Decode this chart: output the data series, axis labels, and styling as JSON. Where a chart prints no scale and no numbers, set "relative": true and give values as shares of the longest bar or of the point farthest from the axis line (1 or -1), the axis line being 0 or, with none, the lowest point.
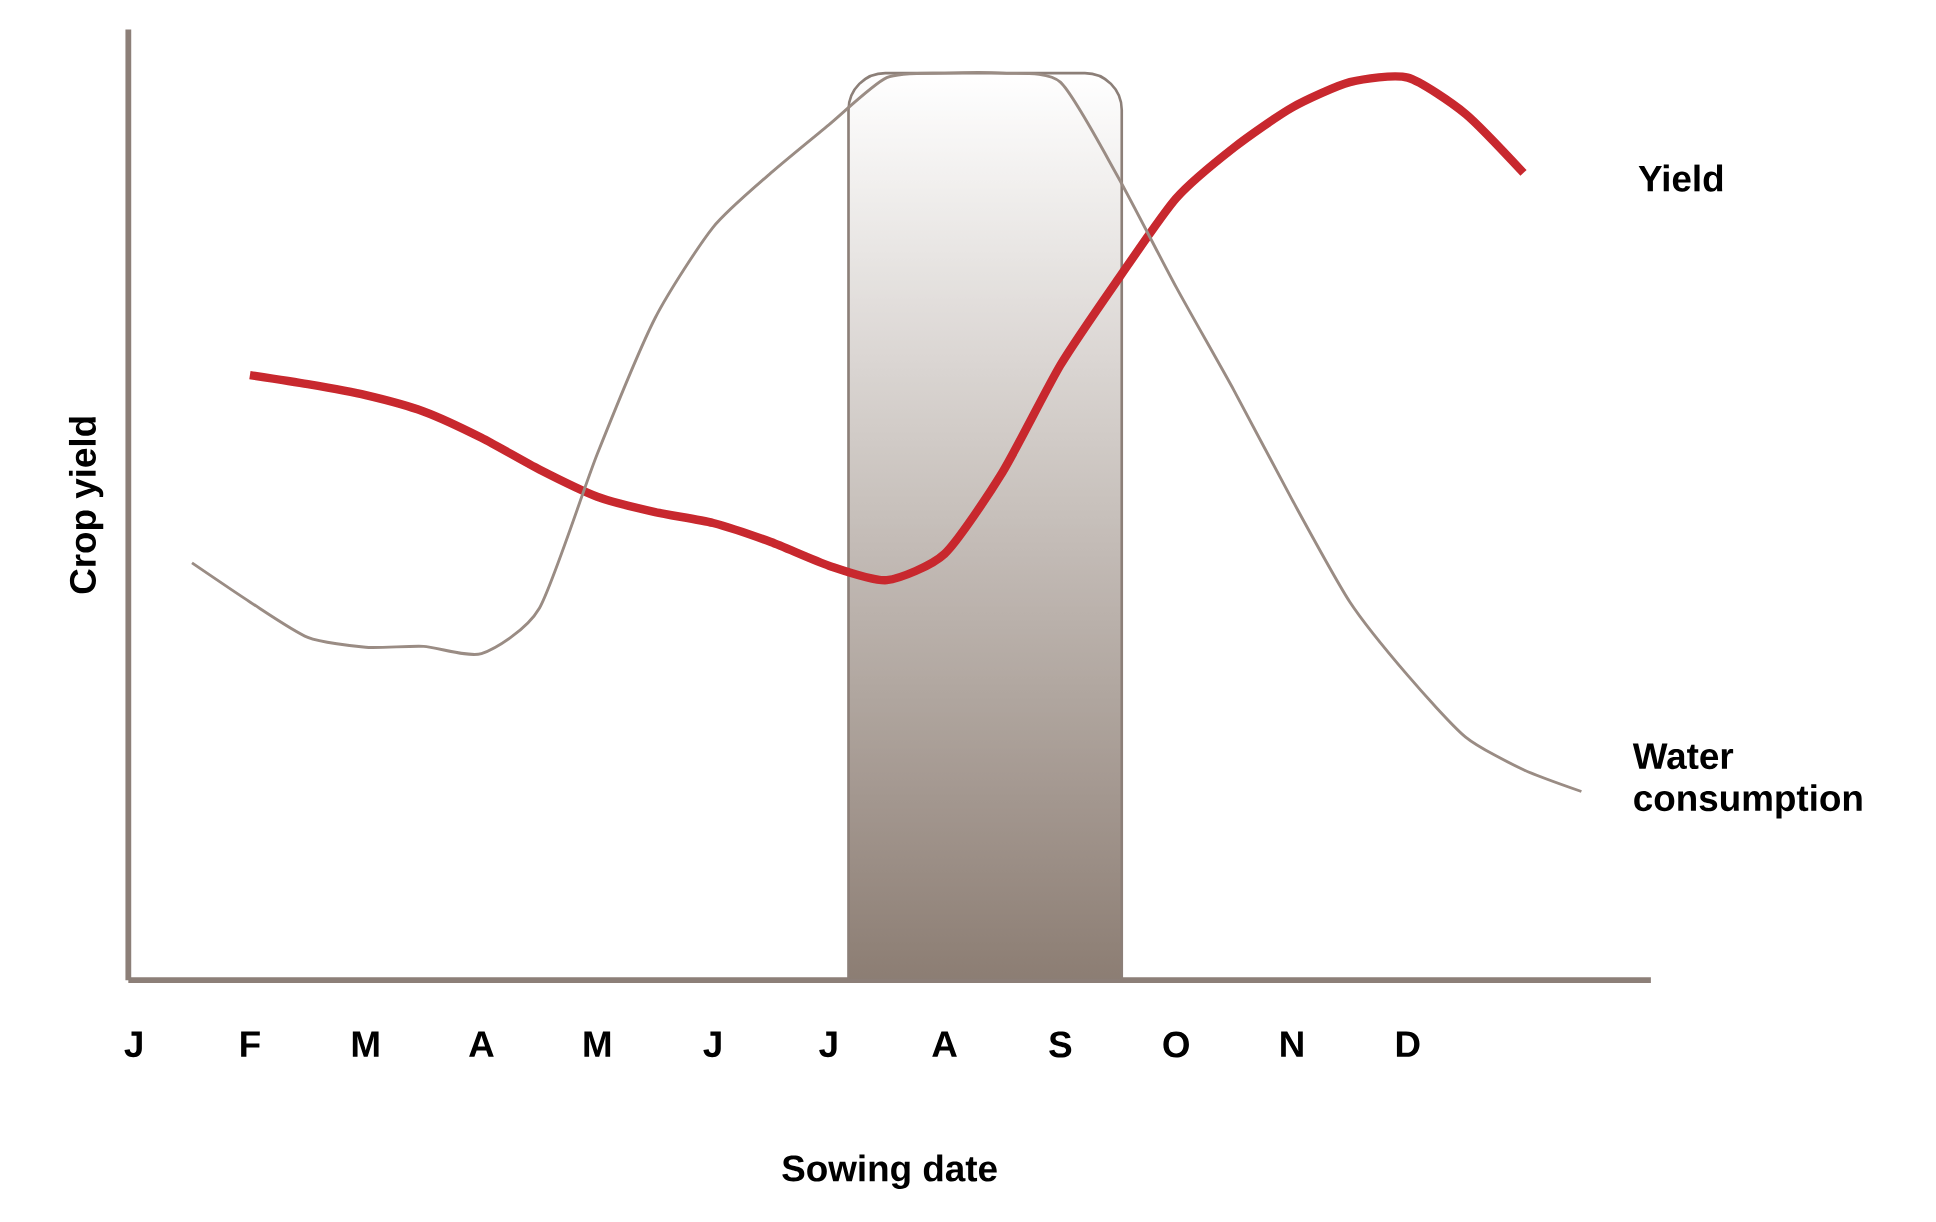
{
  "chart_data": {
    "type": "line",
    "relative": true,
    "xlabel": "Sowing date",
    "ylabel": "Crop yield",
    "categories": [
      "J",
      null,
      "F",
      null,
      "M",
      null,
      "A",
      null,
      "M",
      null,
      "J",
      null,
      "J",
      null,
      "A",
      null,
      "S",
      null,
      "O",
      null,
      "N",
      null,
      "D",
      null,
      null,
      null,
      null
    ],
    "series": [
      {
        "name": "Yield",
        "color": "#c8282e",
        "values": [
          null,
          null,
          0.667,
          0.657,
          0.645,
          0.627,
          0.598,
          0.563,
          0.533,
          0.516,
          0.504,
          0.483,
          0.457,
          0.441,
          0.47,
          0.56,
          0.678,
          0.773,
          0.862,
          0.918,
          0.962,
          0.99,
          0.995,
          0.955,
          0.89,
          null,
          null
        ]
      },
      {
        "name": "Water consumption",
        "color": "#9a8c84",
        "values": [
          null,
          0.46,
          0.417,
          0.378,
          0.367,
          0.368,
          0.36,
          0.41,
          0.58,
          0.73,
          0.83,
          0.89,
          0.943,
          0.995,
          1.0,
          1.0,
          0.99,
          0.885,
          0.764,
          0.65,
          0.53,
          0.417,
          0.336,
          0.268,
          0.232,
          0.208,
          null
        ]
      }
    ]
  }
}
